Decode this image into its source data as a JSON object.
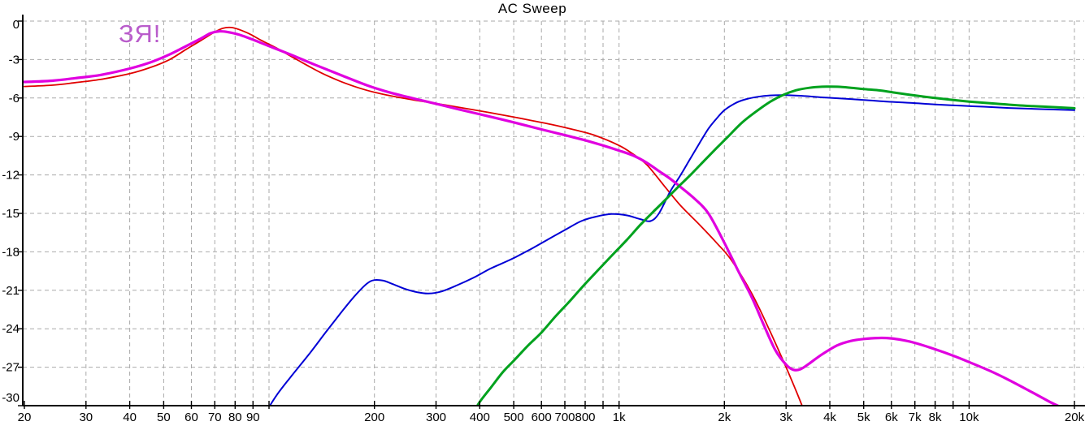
{
  "annotation": {
    "text": "ЗЯ!",
    "color": "#b95ccb"
  },
  "colors": {
    "background": "#ffffff",
    "grid": "#a9a9a9",
    "axis": "#000000",
    "title_text": "#000000",
    "tick_text": "#000000"
  },
  "chart_data": {
    "type": "line",
    "title": "AC Sweep",
    "xlabel": "",
    "ylabel": "",
    "x_scale": "log",
    "x_range_hz": [
      20,
      20000
    ],
    "y_range_db": [
      -30,
      0
    ],
    "grid": "dashed",
    "legend_position": "none",
    "x_ticks": [
      {
        "f": 20,
        "label": "20"
      },
      {
        "f": 30,
        "label": "30"
      },
      {
        "f": 40,
        "label": "40"
      },
      {
        "f": 50,
        "label": "50"
      },
      {
        "f": 60,
        "label": "60"
      },
      {
        "f": 70,
        "label": "70"
      },
      {
        "f": 80,
        "label": "80"
      },
      {
        "f": 90,
        "label": "90"
      },
      {
        "f": 100,
        "label": ""
      },
      {
        "f": 200,
        "label": "200"
      },
      {
        "f": 300,
        "label": "300"
      },
      {
        "f": 400,
        "label": "400"
      },
      {
        "f": 500,
        "label": "500"
      },
      {
        "f": 600,
        "label": "600"
      },
      {
        "f": 700,
        "label": "700"
      },
      {
        "f": 800,
        "label": "800"
      },
      {
        "f": 900,
        "label": ""
      },
      {
        "f": 1000,
        "label": "1k"
      },
      {
        "f": 2000,
        "label": "2k"
      },
      {
        "f": 3000,
        "label": "3k"
      },
      {
        "f": 4000,
        "label": "4k"
      },
      {
        "f": 5000,
        "label": "5k"
      },
      {
        "f": 6000,
        "label": "6k"
      },
      {
        "f": 7000,
        "label": "7k"
      },
      {
        "f": 8000,
        "label": "8k"
      },
      {
        "f": 9000,
        "label": ""
      },
      {
        "f": 10000,
        "label": "10k"
      },
      {
        "f": 20000,
        "label": "20k"
      }
    ],
    "y_ticks": [
      {
        "db": 0,
        "label": "0"
      },
      {
        "db": -3,
        "label": "-3"
      },
      {
        "db": -6,
        "label": "-6"
      },
      {
        "db": -9,
        "label": "-9"
      },
      {
        "db": -12,
        "label": "-12"
      },
      {
        "db": -15,
        "label": "-15"
      },
      {
        "db": -18,
        "label": "-18"
      },
      {
        "db": -21,
        "label": "-21"
      },
      {
        "db": -24,
        "label": "-24"
      },
      {
        "db": -27,
        "label": "-27"
      },
      {
        "db": -30,
        "label": "-30"
      }
    ],
    "series": [
      {
        "name": "red-trace",
        "color": "#e10000",
        "stroke_width": 1.8,
        "points": [
          [
            20,
            -5.1
          ],
          [
            24,
            -5.0
          ],
          [
            28,
            -4.8
          ],
          [
            33,
            -4.55
          ],
          [
            40,
            -4.1
          ],
          [
            46,
            -3.6
          ],
          [
            52,
            -3.0
          ],
          [
            58,
            -2.2
          ],
          [
            64,
            -1.5
          ],
          [
            70,
            -0.85
          ],
          [
            74,
            -0.55
          ],
          [
            78,
            -0.5
          ],
          [
            82,
            -0.65
          ],
          [
            88,
            -1.0
          ],
          [
            95,
            -1.5
          ],
          [
            105,
            -2.1
          ],
          [
            120,
            -3.0
          ],
          [
            140,
            -4.0
          ],
          [
            160,
            -4.7
          ],
          [
            180,
            -5.2
          ],
          [
            200,
            -5.55
          ],
          [
            240,
            -6.0
          ],
          [
            280,
            -6.3
          ],
          [
            320,
            -6.55
          ],
          [
            380,
            -6.9
          ],
          [
            450,
            -7.25
          ],
          [
            550,
            -7.7
          ],
          [
            650,
            -8.1
          ],
          [
            750,
            -8.5
          ],
          [
            850,
            -8.9
          ],
          [
            1000,
            -9.7
          ],
          [
            1100,
            -10.4
          ],
          [
            1200,
            -11.2
          ],
          [
            1350,
            -12.9
          ],
          [
            1500,
            -14.4
          ],
          [
            1700,
            -15.9
          ],
          [
            1900,
            -17.3
          ],
          [
            2100,
            -18.7
          ],
          [
            2400,
            -21.3
          ],
          [
            2700,
            -24.2
          ],
          [
            3000,
            -27.0
          ],
          [
            3200,
            -28.8
          ],
          [
            3400,
            -30.6
          ]
        ]
      },
      {
        "name": "blue-trace",
        "color": "#0000d6",
        "stroke_width": 2,
        "points": [
          [
            98,
            -30.5
          ],
          [
            105,
            -29.2
          ],
          [
            115,
            -27.8
          ],
          [
            130,
            -26.0
          ],
          [
            145,
            -24.3
          ],
          [
            160,
            -22.8
          ],
          [
            175,
            -21.5
          ],
          [
            190,
            -20.5
          ],
          [
            200,
            -20.2
          ],
          [
            212,
            -20.25
          ],
          [
            225,
            -20.5
          ],
          [
            245,
            -20.9
          ],
          [
            265,
            -21.15
          ],
          [
            285,
            -21.25
          ],
          [
            310,
            -21.1
          ],
          [
            345,
            -20.6
          ],
          [
            385,
            -20.0
          ],
          [
            430,
            -19.3
          ],
          [
            490,
            -18.6
          ],
          [
            550,
            -17.9
          ],
          [
            620,
            -17.1
          ],
          [
            700,
            -16.3
          ],
          [
            780,
            -15.6
          ],
          [
            860,
            -15.25
          ],
          [
            950,
            -15.05
          ],
          [
            1050,
            -15.15
          ],
          [
            1150,
            -15.45
          ],
          [
            1230,
            -15.6
          ],
          [
            1300,
            -15.0
          ],
          [
            1400,
            -13.3
          ],
          [
            1500,
            -12.0
          ],
          [
            1600,
            -10.7
          ],
          [
            1700,
            -9.5
          ],
          [
            1800,
            -8.4
          ],
          [
            1900,
            -7.6
          ],
          [
            2000,
            -6.95
          ],
          [
            2150,
            -6.4
          ],
          [
            2300,
            -6.1
          ],
          [
            2500,
            -5.9
          ],
          [
            2700,
            -5.8
          ],
          [
            3000,
            -5.78
          ],
          [
            3400,
            -5.85
          ],
          [
            3800,
            -5.95
          ],
          [
            4400,
            -6.05
          ],
          [
            5000,
            -6.15
          ],
          [
            6000,
            -6.3
          ],
          [
            7000,
            -6.4
          ],
          [
            8000,
            -6.5
          ],
          [
            9500,
            -6.6
          ],
          [
            11000,
            -6.68
          ],
          [
            13000,
            -6.78
          ],
          [
            16000,
            -6.87
          ],
          [
            20000,
            -6.95
          ]
        ]
      },
      {
        "name": "magenta-trace",
        "color": "#e000e0",
        "stroke_width": 3.2,
        "points": [
          [
            20,
            -4.75
          ],
          [
            24,
            -4.65
          ],
          [
            28,
            -4.45
          ],
          [
            33,
            -4.2
          ],
          [
            40,
            -3.7
          ],
          [
            46,
            -3.2
          ],
          [
            52,
            -2.6
          ],
          [
            58,
            -1.95
          ],
          [
            64,
            -1.35
          ],
          [
            68,
            -0.95
          ],
          [
            72,
            -0.8
          ],
          [
            76,
            -0.85
          ],
          [
            82,
            -1.05
          ],
          [
            90,
            -1.45
          ],
          [
            100,
            -1.95
          ],
          [
            115,
            -2.6
          ],
          [
            135,
            -3.4
          ],
          [
            160,
            -4.2
          ],
          [
            190,
            -5.0
          ],
          [
            220,
            -5.55
          ],
          [
            260,
            -6.05
          ],
          [
            300,
            -6.45
          ],
          [
            350,
            -6.9
          ],
          [
            420,
            -7.4
          ],
          [
            500,
            -7.9
          ],
          [
            600,
            -8.45
          ],
          [
            700,
            -8.9
          ],
          [
            800,
            -9.3
          ],
          [
            900,
            -9.7
          ],
          [
            1000,
            -10.1
          ],
          [
            1100,
            -10.5
          ],
          [
            1200,
            -11.05
          ],
          [
            1300,
            -11.7
          ],
          [
            1400,
            -12.3
          ],
          [
            1500,
            -12.95
          ],
          [
            1650,
            -13.9
          ],
          [
            1800,
            -15.0
          ],
          [
            2000,
            -17.3
          ],
          [
            2200,
            -19.6
          ],
          [
            2400,
            -21.6
          ],
          [
            2600,
            -23.8
          ],
          [
            2800,
            -25.7
          ],
          [
            3000,
            -26.8
          ],
          [
            3150,
            -27.2
          ],
          [
            3300,
            -27.15
          ],
          [
            3500,
            -26.7
          ],
          [
            3800,
            -26.0
          ],
          [
            4200,
            -25.3
          ],
          [
            4600,
            -24.95
          ],
          [
            5000,
            -24.8
          ],
          [
            5500,
            -24.72
          ],
          [
            6000,
            -24.75
          ],
          [
            6500,
            -24.9
          ],
          [
            7000,
            -25.1
          ],
          [
            8000,
            -25.6
          ],
          [
            9000,
            -26.1
          ],
          [
            10000,
            -26.6
          ],
          [
            11500,
            -27.3
          ],
          [
            13000,
            -28.0
          ],
          [
            15000,
            -28.9
          ],
          [
            17000,
            -29.7
          ],
          [
            18500,
            -30.2
          ],
          [
            19500,
            -30.7
          ]
        ]
      },
      {
        "name": "green-trace",
        "color": "#00a21e",
        "stroke_width": 3,
        "points": [
          [
            385,
            -30.5
          ],
          [
            400,
            -29.7
          ],
          [
            430,
            -28.6
          ],
          [
            465,
            -27.4
          ],
          [
            500,
            -26.5
          ],
          [
            550,
            -25.3
          ],
          [
            600,
            -24.3
          ],
          [
            660,
            -23.0
          ],
          [
            720,
            -21.9
          ],
          [
            800,
            -20.5
          ],
          [
            880,
            -19.3
          ],
          [
            960,
            -18.2
          ],
          [
            1050,
            -17.1
          ],
          [
            1150,
            -15.9
          ],
          [
            1250,
            -14.9
          ],
          [
            1350,
            -14.0
          ],
          [
            1480,
            -12.9
          ],
          [
            1600,
            -12.0
          ],
          [
            1750,
            -10.9
          ],
          [
            1900,
            -9.9
          ],
          [
            2050,
            -9.0
          ],
          [
            2250,
            -7.9
          ],
          [
            2450,
            -7.1
          ],
          [
            2700,
            -6.3
          ],
          [
            2950,
            -5.75
          ],
          [
            3200,
            -5.4
          ],
          [
            3500,
            -5.2
          ],
          [
            3800,
            -5.12
          ],
          [
            4200,
            -5.12
          ],
          [
            4600,
            -5.2
          ],
          [
            5000,
            -5.3
          ],
          [
            5600,
            -5.42
          ],
          [
            6200,
            -5.6
          ],
          [
            7000,
            -5.8
          ],
          [
            8000,
            -6.0
          ],
          [
            9000,
            -6.15
          ],
          [
            10000,
            -6.28
          ],
          [
            12000,
            -6.45
          ],
          [
            14000,
            -6.58
          ],
          [
            16500,
            -6.68
          ],
          [
            20000,
            -6.8
          ]
        ]
      }
    ]
  }
}
